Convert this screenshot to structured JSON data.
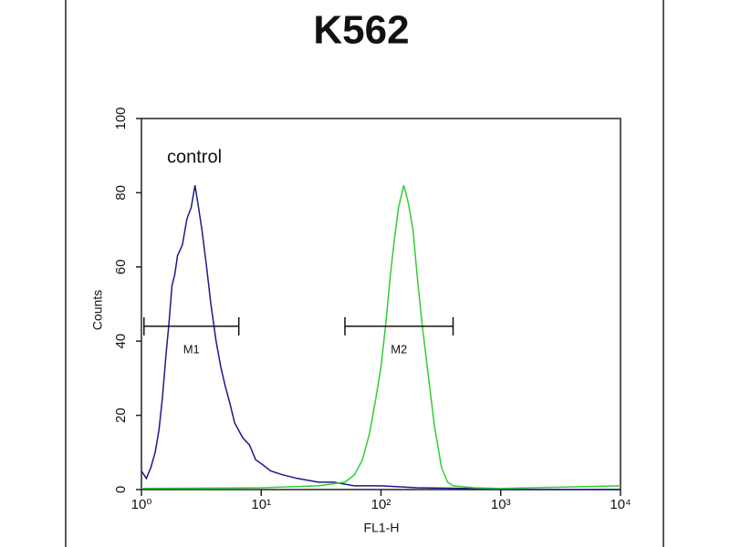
{
  "chart_data": {
    "type": "line",
    "title": "K562",
    "x_label": "FL1-H",
    "y_label": "Counts",
    "annotation": "control",
    "log_x": true,
    "xlim": [
      1,
      10000
    ],
    "ylim": [
      0,
      100
    ],
    "xticks": [
      {
        "value": 1,
        "label": "10⁰"
      },
      {
        "value": 10,
        "label": "10¹"
      },
      {
        "value": 100,
        "label": "10²"
      },
      {
        "value": 1000,
        "label": "10³"
      },
      {
        "value": 10000,
        "label": "10⁴"
      }
    ],
    "yticks": [
      0,
      20,
      40,
      60,
      80,
      100
    ],
    "series": [
      {
        "color": "#1a1a8c",
        "x": [
          1.0,
          1.1,
          1.2,
          1.3,
          1.4,
          1.5,
          1.6,
          1.7,
          1.8,
          1.9,
          2.0,
          2.2,
          2.4,
          2.6,
          2.8,
          3.0,
          3.2,
          3.5,
          3.8,
          4.2,
          4.6,
          5.0,
          5.5,
          6.0,
          7,
          8,
          9,
          10,
          12,
          15,
          20,
          30,
          40,
          60,
          100,
          200,
          500,
          1000,
          10000
        ],
        "values": [
          5,
          3,
          6,
          10,
          16,
          25,
          36,
          45,
          55,
          58,
          63,
          66,
          73,
          76,
          82,
          76,
          70,
          60,
          50,
          40,
          33,
          28,
          23,
          18,
          14,
          12,
          8,
          7,
          5,
          4,
          3,
          2,
          2,
          1,
          1,
          0.5,
          0.3,
          0,
          0
        ]
      },
      {
        "color": "#33cc33",
        "x": [
          1,
          10,
          30,
          50,
          60,
          70,
          80,
          90,
          100,
          110,
          120,
          130,
          140,
          155,
          170,
          185,
          200,
          220,
          250,
          280,
          320,
          360,
          400,
          600,
          1000,
          10000
        ],
        "values": [
          0.3,
          0.5,
          1,
          2,
          4,
          8,
          15,
          24,
          33,
          45,
          58,
          68,
          76,
          82,
          77,
          70,
          58,
          45,
          30,
          17,
          6,
          2,
          1,
          0.5,
          0.3,
          1
        ]
      }
    ],
    "gates": [
      {
        "label": "M1",
        "x": [
          1.05,
          6.5
        ],
        "y": 44
      },
      {
        "label": "M2",
        "x": [
          50,
          400
        ],
        "y": 44
      }
    ]
  }
}
